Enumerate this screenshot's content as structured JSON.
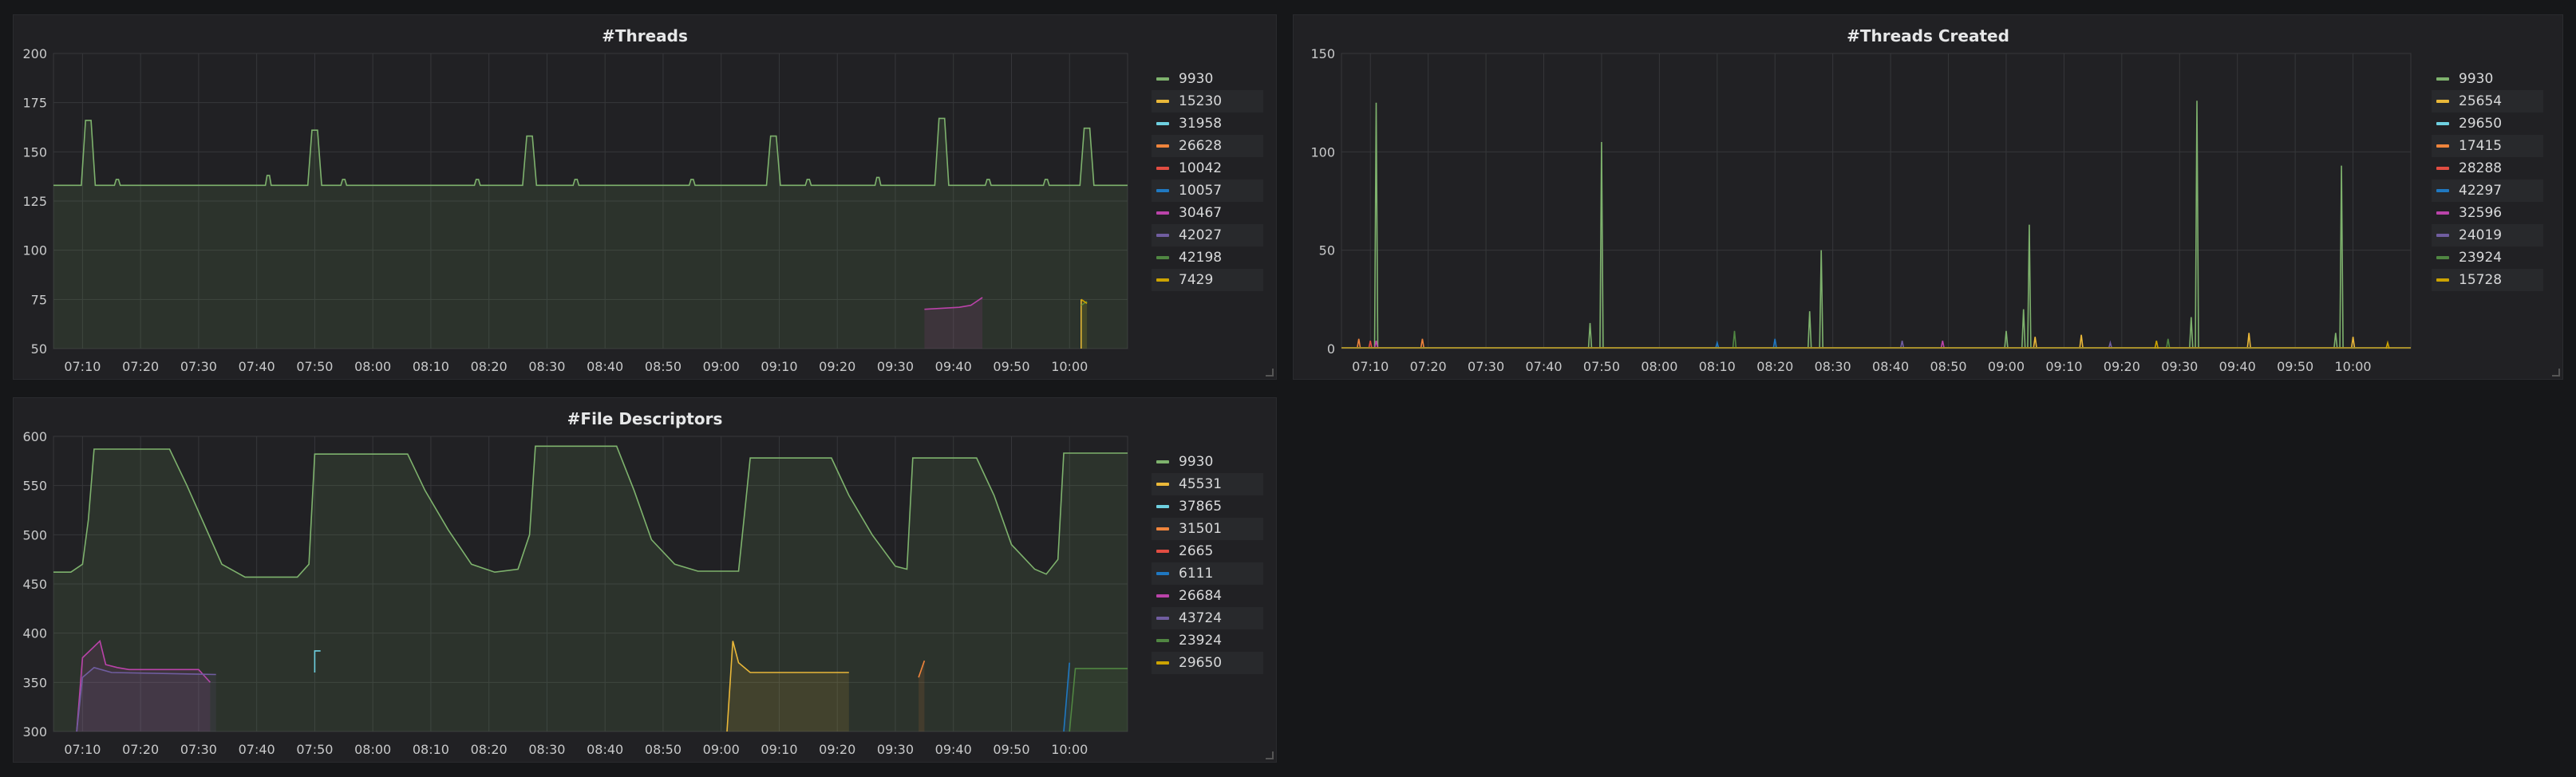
{
  "colors": {
    "panel_bg": "#212124",
    "grid": "#36373a",
    "palette": [
      "#7eb26d",
      "#eab839",
      "#6ed0e0",
      "#ef843c",
      "#e24d42",
      "#1f78c1",
      "#ba43a9",
      "#705da0",
      "#508642",
      "#cca300"
    ]
  },
  "chart_data": [
    {
      "type": "line",
      "title": "#Threads",
      "xlabel": "",
      "ylabel": "",
      "ylim": [
        50,
        200
      ],
      "yticks": [
        "50",
        "75",
        "100",
        "125",
        "150",
        "175",
        "200"
      ],
      "xlim": [
        "07:05",
        "10:10"
      ],
      "xticks": [
        "07:10",
        "07:20",
        "07:30",
        "07:40",
        "07:50",
        "08:00",
        "08:10",
        "08:20",
        "08:30",
        "08:40",
        "08:50",
        "09:00",
        "09:10",
        "09:20",
        "09:30",
        "09:40",
        "09:50",
        "10:00"
      ],
      "grid": true,
      "legend": "right",
      "series": [
        {
          "name": "9930",
          "baseline": 133,
          "fill": true,
          "spikes": [
            [
              "07:11",
              166
            ],
            [
              "07:50",
              161
            ],
            [
              "08:27",
              158
            ],
            [
              "09:09",
              158
            ],
            [
              "09:38",
              167
            ],
            [
              "10:03",
              162
            ]
          ],
          "bumps": [
            [
              "07:16",
              136
            ],
            [
              "07:42",
              138
            ],
            [
              "07:55",
              136
            ],
            [
              "08:18",
              136
            ],
            [
              "08:35",
              136
            ],
            [
              "08:55",
              136
            ],
            [
              "09:15",
              136
            ],
            [
              "09:27",
              137
            ],
            [
              "09:46",
              136
            ],
            [
              "09:56",
              136
            ]
          ]
        },
        {
          "name": "15230",
          "segment": [
            "10:02",
            "10:02"
          ],
          "values": [
            75,
            50
          ]
        },
        {
          "name": "31958"
        },
        {
          "name": "26628"
        },
        {
          "name": "10042"
        },
        {
          "name": "10057"
        },
        {
          "name": "30467",
          "x": [
            "09:35",
            "09:41",
            "09:43",
            "09:45"
          ],
          "y": [
            70,
            71,
            72,
            76
          ],
          "fill": true
        },
        {
          "name": "42027"
        },
        {
          "name": "42198",
          "x": [
            "10:02",
            "10:03"
          ],
          "y": [
            72,
            74
          ],
          "fill": true
        },
        {
          "name": "7429",
          "x": [
            "10:02",
            "10:03"
          ],
          "y": [
            75,
            73
          ],
          "fill": true
        }
      ]
    },
    {
      "type": "line",
      "title": "#Threads Created",
      "xlabel": "",
      "ylabel": "",
      "ylim": [
        0,
        150
      ],
      "yticks": [
        "0",
        "50",
        "100",
        "150"
      ],
      "xlim": [
        "07:05",
        "10:10"
      ],
      "xticks": [
        "07:10",
        "07:20",
        "07:30",
        "07:40",
        "07:50",
        "08:00",
        "08:10",
        "08:20",
        "08:30",
        "08:40",
        "08:50",
        "09:00",
        "09:10",
        "09:20",
        "09:30",
        "09:40",
        "09:50",
        "10:00"
      ],
      "grid": true,
      "legend": "right",
      "series": [
        {
          "name": "9930",
          "spikes": [
            [
              "07:11",
              125
            ],
            [
              "07:48",
              13
            ],
            [
              "07:50",
              105
            ],
            [
              "08:28",
              50
            ],
            [
              "08:26",
              19
            ],
            [
              "09:00",
              9
            ],
            [
              "09:04",
              63
            ],
            [
              "09:03",
              20
            ],
            [
              "09:33",
              126
            ],
            [
              "09:32",
              16
            ],
            [
              "09:58",
              93
            ],
            [
              "09:57",
              8
            ]
          ]
        },
        {
          "name": "25654",
          "spikes": [
            [
              "09:05",
              6
            ],
            [
              "09:13",
              7
            ],
            [
              "09:42",
              8
            ],
            [
              "10:00",
              6
            ]
          ]
        },
        {
          "name": "29650"
        },
        {
          "name": "17415",
          "spikes": [
            [
              "07:08",
              5
            ],
            [
              "07:19",
              5
            ]
          ]
        },
        {
          "name": "28288",
          "spikes": [
            [
              "07:10",
              4
            ]
          ]
        },
        {
          "name": "42297",
          "spikes": [
            [
              "08:10",
              3
            ],
            [
              "08:20",
              5
            ]
          ]
        },
        {
          "name": "32596",
          "spikes": [
            [
              "07:11",
              4
            ],
            [
              "08:49",
              4
            ]
          ]
        },
        {
          "name": "24019",
          "spikes": [
            [
              "08:42",
              4
            ],
            [
              "09:18",
              3
            ]
          ]
        },
        {
          "name": "23924",
          "spikes": [
            [
              "08:13",
              9
            ],
            [
              "09:28",
              5
            ]
          ]
        },
        {
          "name": "15728",
          "spikes": [
            [
              "09:26",
              4
            ],
            [
              "10:06",
              3
            ]
          ]
        }
      ]
    },
    {
      "type": "line",
      "title": "#File Descriptors",
      "xlabel": "",
      "ylabel": "",
      "ylim": [
        300,
        600
      ],
      "yticks": [
        "300",
        "350",
        "400",
        "450",
        "500",
        "550",
        "600"
      ],
      "xlim": [
        "07:05",
        "10:10"
      ],
      "xticks": [
        "07:10",
        "07:20",
        "07:30",
        "07:40",
        "07:50",
        "08:00",
        "08:10",
        "08:20",
        "08:30",
        "08:40",
        "08:50",
        "09:00",
        "09:10",
        "09:20",
        "09:30",
        "09:40",
        "09:50",
        "10:00"
      ],
      "grid": true,
      "legend": "right",
      "series": [
        {
          "name": "9930",
          "fill": true,
          "x": [
            "07:05",
            "07:08",
            "07:10",
            "07:11",
            "07:12",
            "07:25",
            "07:28",
            "07:31",
            "07:34",
            "07:38",
            "07:47",
            "07:49",
            "07:50",
            "08:06",
            "08:09",
            "08:13",
            "08:17",
            "08:21",
            "08:25",
            "08:27",
            "08:28",
            "08:42",
            "08:45",
            "08:48",
            "08:52",
            "08:56",
            "09:03",
            "09:04",
            "09:05",
            "09:19",
            "09:22",
            "09:26",
            "09:30",
            "09:32",
            "09:33",
            "09:44",
            "09:47",
            "09:50",
            "09:54",
            "09:56",
            "09:58",
            "09:59",
            "10:10"
          ],
          "y": [
            462,
            462,
            470,
            515,
            587,
            587,
            550,
            510,
            470,
            457,
            457,
            470,
            582,
            582,
            545,
            505,
            470,
            462,
            465,
            500,
            590,
            590,
            545,
            495,
            470,
            463,
            463,
            520,
            578,
            578,
            540,
            500,
            468,
            465,
            578,
            578,
            540,
            490,
            465,
            460,
            475,
            583,
            583
          ]
        },
        {
          "name": "45531",
          "x": [
            "09:01",
            "09:02",
            "09:03",
            "09:05",
            "09:06",
            "09:22"
          ],
          "y": [
            300,
            392,
            370,
            360,
            360,
            360
          ],
          "fill": true
        },
        {
          "name": "37865",
          "x": [
            "07:50",
            "07:50",
            "07:51"
          ],
          "y": [
            360,
            382,
            382
          ]
        },
        {
          "name": "31501",
          "x": [
            "09:34",
            "09:35"
          ],
          "y": [
            355,
            372
          ],
          "fill": true
        },
        {
          "name": "2665"
        },
        {
          "name": "6111",
          "x": [
            "09:59",
            "10:00"
          ],
          "y": [
            300,
            370
          ],
          "fill": true
        },
        {
          "name": "26684",
          "x": [
            "07:09",
            "07:10",
            "07:13",
            "07:14",
            "07:16",
            "07:18",
            "07:30",
            "07:32"
          ],
          "y": [
            300,
            375,
            392,
            368,
            365,
            363,
            363,
            350
          ],
          "fill": true
        },
        {
          "name": "43724",
          "x": [
            "07:09",
            "07:10",
            "07:12",
            "07:15",
            "07:33"
          ],
          "y": [
            300,
            355,
            365,
            360,
            358
          ],
          "fill": true
        },
        {
          "name": "23924",
          "x": [
            "10:00",
            "10:01",
            "10:10"
          ],
          "y": [
            300,
            364,
            364
          ],
          "fill": true
        },
        {
          "name": "29650"
        }
      ]
    }
  ]
}
